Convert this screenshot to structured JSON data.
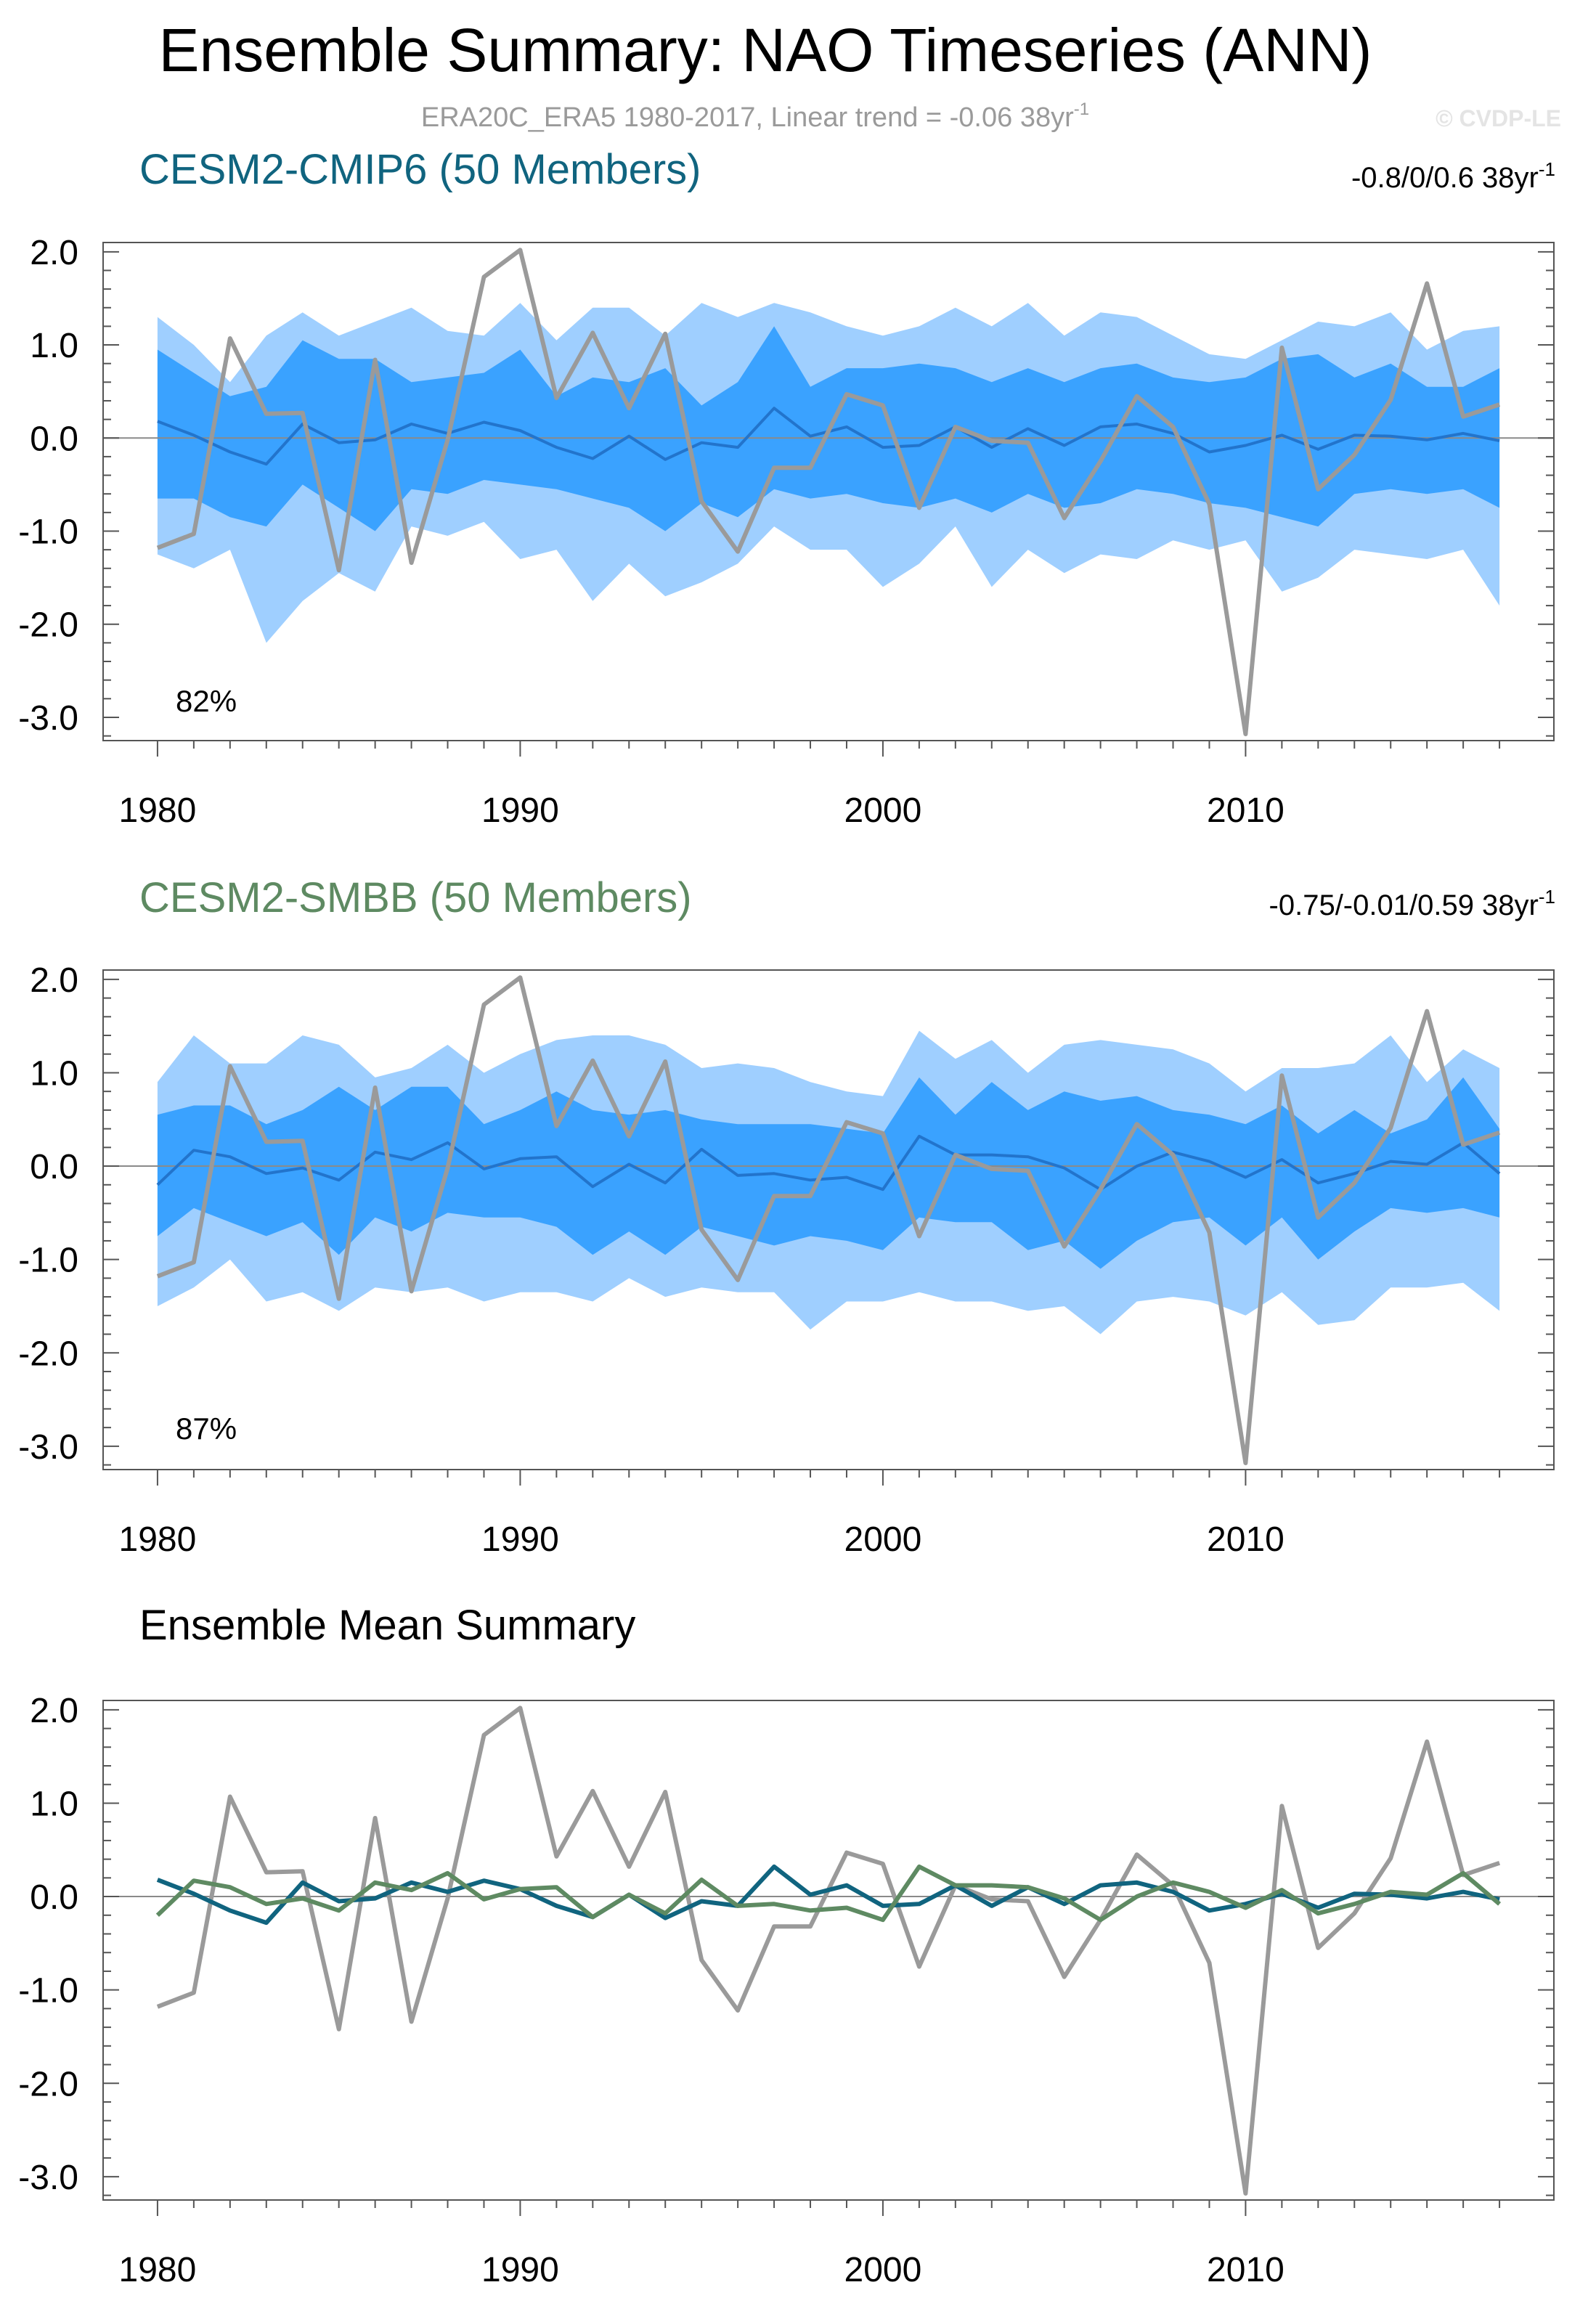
{
  "figure": {
    "title": "Ensemble Summary: NAO Timeseries (ANN)",
    "subtitle": "ERA20C_ERA5 1980-2017, Linear trend = -0.06 38yr",
    "subtitle_superscript": "-1",
    "credit": "© CVDP-LE"
  },
  "colors": {
    "outer_band": "#9fcfff",
    "inner_band": "#3aa2ff",
    "cmip6_mean": "#2274cc",
    "smbb_mean": "#2a78c4",
    "observed": "#9a9a9a",
    "cmip6_title": "#10647f",
    "smbb_title": "#5e8a62",
    "summary_title": "#000000",
    "summary_cmip6": "#10647f",
    "summary_smbb": "#5e8a62"
  },
  "panels": {
    "cmip6": {
      "title": "CESM2-CMIP6 (50 Members)",
      "range": "-0.8/0/0.6 38yr",
      "range_superscript": "-1",
      "percent_label": "82%"
    },
    "smbb": {
      "title": "CESM2-SMBB (50 Members)",
      "range": "-0.75/-0.01/0.59 38yr",
      "range_superscript": "-1",
      "percent_label": "87%"
    },
    "summary": {
      "title": "Ensemble Mean Summary"
    }
  },
  "chart_data": [
    {
      "id": "cmip6",
      "type": "area",
      "title": "CESM2-CMIP6 (50 Members)",
      "x": [
        1980,
        1981,
        1982,
        1983,
        1984,
        1985,
        1986,
        1987,
        1988,
        1989,
        1990,
        1991,
        1992,
        1993,
        1994,
        1995,
        1996,
        1997,
        1998,
        1999,
        2000,
        2001,
        2002,
        2003,
        2004,
        2005,
        2006,
        2007,
        2008,
        2009,
        2010,
        2011,
        2012,
        2013,
        2014,
        2015,
        2016,
        2017
      ],
      "xlim": [
        1978.5,
        2018.5
      ],
      "ylim": [
        -3.25,
        2.1
      ],
      "xticks": [
        1980,
        1990,
        2000,
        2010
      ],
      "xtick_labels": [
        "1980",
        "1990",
        "2000",
        "2010"
      ],
      "yticks": [
        2.0,
        1.0,
        0.0,
        -1.0,
        -2.0,
        -3.0
      ],
      "ytick_labels": [
        "2.0",
        "1.0",
        "0.0",
        "-1.0",
        "-2.0",
        "-3.0"
      ],
      "zero_line": true,
      "series": [
        {
          "name": "outer_upper",
          "role": "band_outer_upper",
          "values": [
            1.3,
            1.0,
            0.6,
            1.1,
            1.35,
            1.1,
            1.25,
            1.4,
            1.15,
            1.1,
            1.45,
            1.05,
            1.4,
            1.4,
            1.1,
            1.45,
            1.3,
            1.45,
            1.35,
            1.2,
            1.1,
            1.2,
            1.4,
            1.2,
            1.45,
            1.1,
            1.35,
            1.3,
            1.1,
            0.9,
            0.85,
            1.05,
            1.25,
            1.2,
            1.35,
            0.95,
            1.15,
            1.2
          ]
        },
        {
          "name": "inner_upper",
          "role": "band_inner_upper",
          "values": [
            0.95,
            0.7,
            0.45,
            0.55,
            1.05,
            0.85,
            0.85,
            0.6,
            0.65,
            0.7,
            0.95,
            0.45,
            0.65,
            0.6,
            0.75,
            0.35,
            0.6,
            1.2,
            0.55,
            0.75,
            0.75,
            0.8,
            0.75,
            0.6,
            0.75,
            0.6,
            0.75,
            0.8,
            0.65,
            0.6,
            0.65,
            0.85,
            0.9,
            0.65,
            0.8,
            0.55,
            0.55,
            0.75
          ]
        },
        {
          "name": "inner_lower",
          "role": "band_inner_lower",
          "values": [
            -0.65,
            -0.65,
            -0.85,
            -0.95,
            -0.5,
            -0.75,
            -1.0,
            -0.55,
            -0.6,
            -0.45,
            -0.5,
            -0.55,
            -0.65,
            -0.75,
            -1.0,
            -0.7,
            -0.85,
            -0.55,
            -0.65,
            -0.6,
            -0.7,
            -0.75,
            -0.65,
            -0.8,
            -0.6,
            -0.75,
            -0.7,
            -0.55,
            -0.6,
            -0.7,
            -0.75,
            -0.85,
            -0.95,
            -0.6,
            -0.55,
            -0.6,
            -0.55,
            -0.75
          ]
        },
        {
          "name": "outer_lower",
          "role": "band_outer_lower",
          "values": [
            -1.25,
            -1.4,
            -1.2,
            -2.2,
            -1.75,
            -1.45,
            -1.65,
            -0.95,
            -1.05,
            -0.9,
            -1.3,
            -1.2,
            -1.75,
            -1.35,
            -1.7,
            -1.55,
            -1.35,
            -0.95,
            -1.2,
            -1.2,
            -1.6,
            -1.35,
            -0.95,
            -1.6,
            -1.2,
            -1.45,
            -1.25,
            -1.3,
            -1.1,
            -1.2,
            -1.1,
            -1.65,
            -1.5,
            -1.2,
            -1.25,
            -1.3,
            -1.2,
            -1.8
          ]
        },
        {
          "name": "CESM2-CMIP6 ensemble mean",
          "role": "mean",
          "values": [
            0.18,
            0.03,
            -0.15,
            -0.28,
            0.15,
            -0.05,
            -0.02,
            0.15,
            0.05,
            0.17,
            0.08,
            -0.1,
            -0.22,
            0.02,
            -0.23,
            -0.05,
            -0.1,
            0.32,
            0.02,
            0.12,
            -0.1,
            -0.08,
            0.12,
            -0.1,
            0.1,
            -0.08,
            0.12,
            0.15,
            0.05,
            -0.15,
            -0.08,
            0.03,
            -0.12,
            0.03,
            0.02,
            -0.02,
            0.05,
            -0.03
          ]
        },
        {
          "name": "ERA20C_ERA5",
          "role": "observed",
          "values": [
            -1.18,
            -1.03,
            1.07,
            0.26,
            0.27,
            -1.42,
            0.84,
            -1.34,
            -0.02,
            1.73,
            2.02,
            0.43,
            1.13,
            0.32,
            1.12,
            -0.68,
            -1.22,
            -0.32,
            -0.32,
            0.47,
            0.35,
            -0.75,
            0.12,
            -0.03,
            -0.05,
            -0.86,
            -0.25,
            0.45,
            0.12,
            -0.71,
            -3.18,
            0.97,
            -0.55,
            -0.18,
            0.41,
            1.66,
            0.23,
            0.36
          ]
        }
      ]
    },
    {
      "id": "smbb",
      "type": "area",
      "title": "CESM2-SMBB (50 Members)",
      "x": [
        1980,
        1981,
        1982,
        1983,
        1984,
        1985,
        1986,
        1987,
        1988,
        1989,
        1990,
        1991,
        1992,
        1993,
        1994,
        1995,
        1996,
        1997,
        1998,
        1999,
        2000,
        2001,
        2002,
        2003,
        2004,
        2005,
        2006,
        2007,
        2008,
        2009,
        2010,
        2011,
        2012,
        2013,
        2014,
        2015,
        2016,
        2017
      ],
      "xlim": [
        1978.5,
        2018.5
      ],
      "ylim": [
        -3.25,
        2.1
      ],
      "xticks": [
        1980,
        1990,
        2000,
        2010
      ],
      "xtick_labels": [
        "1980",
        "1990",
        "2000",
        "2010"
      ],
      "yticks": [
        2.0,
        1.0,
        0.0,
        -1.0,
        -2.0,
        -3.0
      ],
      "ytick_labels": [
        "2.0",
        "1.0",
        "0.0",
        "-1.0",
        "-2.0",
        "-3.0"
      ],
      "zero_line": true,
      "series": [
        {
          "name": "outer_upper",
          "role": "band_outer_upper",
          "values": [
            0.9,
            1.4,
            1.1,
            1.1,
            1.4,
            1.3,
            0.95,
            1.05,
            1.3,
            1.0,
            1.2,
            1.35,
            1.4,
            1.4,
            1.3,
            1.05,
            1.1,
            1.05,
            0.9,
            0.8,
            0.75,
            1.45,
            1.15,
            1.35,
            1.0,
            1.3,
            1.35,
            1.3,
            1.25,
            1.1,
            0.8,
            1.05,
            1.05,
            1.1,
            1.4,
            0.9,
            1.25,
            1.05
          ]
        },
        {
          "name": "inner_upper",
          "role": "band_inner_upper",
          "values": [
            0.55,
            0.65,
            0.65,
            0.45,
            0.6,
            0.85,
            0.6,
            0.85,
            0.85,
            0.45,
            0.6,
            0.8,
            0.6,
            0.55,
            0.6,
            0.5,
            0.45,
            0.45,
            0.45,
            0.4,
            0.35,
            0.95,
            0.55,
            0.9,
            0.6,
            0.8,
            0.7,
            0.75,
            0.6,
            0.55,
            0.45,
            0.65,
            0.35,
            0.6,
            0.35,
            0.5,
            0.95,
            0.4
          ]
        },
        {
          "name": "inner_lower",
          "role": "band_inner_lower",
          "values": [
            -0.75,
            -0.45,
            -0.6,
            -0.75,
            -0.6,
            -0.95,
            -0.55,
            -0.7,
            -0.5,
            -0.55,
            -0.55,
            -0.65,
            -0.95,
            -0.7,
            -0.95,
            -0.65,
            -0.75,
            -0.85,
            -0.75,
            -0.8,
            -0.9,
            -0.55,
            -0.6,
            -0.6,
            -0.9,
            -0.8,
            -1.1,
            -0.8,
            -0.6,
            -0.55,
            -0.85,
            -0.55,
            -1.0,
            -0.7,
            -0.45,
            -0.5,
            -0.45,
            -0.55
          ]
        },
        {
          "name": "outer_lower",
          "role": "band_outer_lower",
          "values": [
            -1.5,
            -1.3,
            -1.0,
            -1.45,
            -1.35,
            -1.55,
            -1.3,
            -1.35,
            -1.3,
            -1.45,
            -1.35,
            -1.35,
            -1.45,
            -1.2,
            -1.4,
            -1.3,
            -1.35,
            -1.35,
            -1.75,
            -1.45,
            -1.45,
            -1.35,
            -1.45,
            -1.45,
            -1.55,
            -1.5,
            -1.8,
            -1.45,
            -1.4,
            -1.45,
            -1.6,
            -1.35,
            -1.7,
            -1.65,
            -1.3,
            -1.3,
            -1.25,
            -1.55
          ]
        },
        {
          "name": "CESM2-SMBB ensemble mean",
          "role": "mean",
          "values": [
            -0.2,
            0.17,
            0.1,
            -0.08,
            -0.02,
            -0.15,
            0.15,
            0.07,
            0.25,
            -0.03,
            0.08,
            0.1,
            -0.22,
            0.02,
            -0.18,
            0.18,
            -0.1,
            -0.08,
            -0.15,
            -0.12,
            -0.25,
            0.32,
            0.12,
            0.12,
            0.1,
            -0.02,
            -0.25,
            0.0,
            0.15,
            0.05,
            -0.12,
            0.07,
            -0.18,
            -0.08,
            0.05,
            0.02,
            0.25,
            -0.08
          ]
        },
        {
          "name": "ERA20C_ERA5",
          "role": "observed",
          "values": [
            -1.18,
            -1.03,
            1.07,
            0.26,
            0.27,
            -1.42,
            0.84,
            -1.34,
            -0.02,
            1.73,
            2.02,
            0.43,
            1.13,
            0.32,
            1.12,
            -0.68,
            -1.22,
            -0.32,
            -0.32,
            0.47,
            0.35,
            -0.75,
            0.12,
            -0.03,
            -0.05,
            -0.86,
            -0.25,
            0.45,
            0.12,
            -0.71,
            -3.18,
            0.97,
            -0.55,
            -0.18,
            0.41,
            1.66,
            0.23,
            0.36
          ]
        }
      ]
    },
    {
      "id": "summary",
      "type": "line",
      "title": "Ensemble Mean Summary",
      "x": [
        1980,
        1981,
        1982,
        1983,
        1984,
        1985,
        1986,
        1987,
        1988,
        1989,
        1990,
        1991,
        1992,
        1993,
        1994,
        1995,
        1996,
        1997,
        1998,
        1999,
        2000,
        2001,
        2002,
        2003,
        2004,
        2005,
        2006,
        2007,
        2008,
        2009,
        2010,
        2011,
        2012,
        2013,
        2014,
        2015,
        2016,
        2017
      ],
      "xlim": [
        1978.5,
        2018.5
      ],
      "ylim": [
        -3.25,
        2.1
      ],
      "xticks": [
        1980,
        1990,
        2000,
        2010
      ],
      "xtick_labels": [
        "1980",
        "1990",
        "2000",
        "2010"
      ],
      "yticks": [
        2.0,
        1.0,
        0.0,
        -1.0,
        -2.0,
        -3.0
      ],
      "ytick_labels": [
        "2.0",
        "1.0",
        "0.0",
        "-1.0",
        "-2.0",
        "-3.0"
      ],
      "zero_line": true,
      "series": [
        {
          "name": "ERA20C_ERA5",
          "role": "observed",
          "values": [
            -1.18,
            -1.03,
            1.07,
            0.26,
            0.27,
            -1.42,
            0.84,
            -1.34,
            -0.02,
            1.73,
            2.02,
            0.43,
            1.13,
            0.32,
            1.12,
            -0.68,
            -1.22,
            -0.32,
            -0.32,
            0.47,
            0.35,
            -0.75,
            0.12,
            -0.03,
            -0.05,
            -0.86,
            -0.25,
            0.45,
            0.12,
            -0.71,
            -3.18,
            0.97,
            -0.55,
            -0.18,
            0.41,
            1.66,
            0.23,
            0.36
          ]
        },
        {
          "name": "CESM2-CMIP6 ensemble mean",
          "role": "summary_cmip6",
          "values": [
            0.18,
            0.03,
            -0.15,
            -0.28,
            0.15,
            -0.05,
            -0.02,
            0.15,
            0.05,
            0.17,
            0.08,
            -0.1,
            -0.22,
            0.02,
            -0.23,
            -0.05,
            -0.1,
            0.32,
            0.02,
            0.12,
            -0.1,
            -0.08,
            0.12,
            -0.1,
            0.1,
            -0.08,
            0.12,
            0.15,
            0.05,
            -0.15,
            -0.08,
            0.03,
            -0.12,
            0.03,
            0.02,
            -0.02,
            0.05,
            -0.03
          ]
        },
        {
          "name": "CESM2-SMBB ensemble mean",
          "role": "summary_smbb",
          "values": [
            -0.2,
            0.17,
            0.1,
            -0.08,
            -0.02,
            -0.15,
            0.15,
            0.07,
            0.25,
            -0.03,
            0.08,
            0.1,
            -0.22,
            0.02,
            -0.18,
            0.18,
            -0.1,
            -0.08,
            -0.15,
            -0.12,
            -0.25,
            0.32,
            0.12,
            0.12,
            0.1,
            -0.02,
            -0.25,
            0.0,
            0.15,
            0.05,
            -0.12,
            0.07,
            -0.18,
            -0.08,
            0.05,
            0.02,
            0.25,
            -0.08
          ]
        }
      ]
    }
  ]
}
